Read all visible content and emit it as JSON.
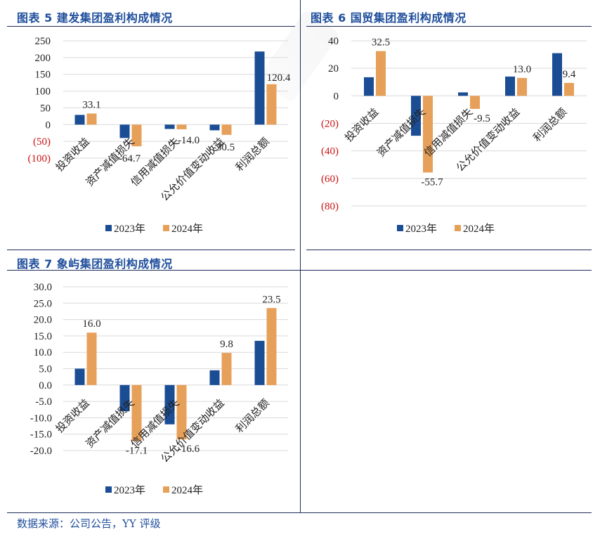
{
  "colors": {
    "y2023": "#1a4d94",
    "y2024": "#e6a05a",
    "negative_tick": "#cc1111",
    "axis_text": "#222222",
    "grid": "#d9d9d9",
    "title": "#1f4e9c"
  },
  "source_note": "数据来源：公司公告，YY 评级",
  "chart_data": [
    {
      "type": "bar",
      "title": "图表 5 建发集团盈利构成情况",
      "categories": [
        "投资收益",
        "资产减值损失",
        "信用减值损失",
        "公允价值变动收益",
        "利润总额"
      ],
      "series": [
        {
          "name": "2023年",
          "values": [
            29.0,
            -40.0,
            -13.0,
            -17.0,
            218.0
          ]
        },
        {
          "name": "2024年",
          "values": [
            33.1,
            -64.7,
            -14.0,
            -30.5,
            120.4
          ]
        }
      ],
      "data_labels": [
        "33.1",
        "-64.7",
        "-14.0",
        "-30.5",
        "120.4"
      ],
      "ylim": [
        -100,
        250
      ],
      "yticks": [
        "250",
        "200",
        "150",
        "100",
        "50",
        "0",
        "(50)",
        "(100)"
      ],
      "legend": "bottom",
      "grid": true
    },
    {
      "type": "bar",
      "title": "图表 6 国贸集团盈利构成情况",
      "categories": [
        "投资收益",
        "资产减值损失",
        "信用减值损失",
        "公允价值变动收益",
        "利润总额"
      ],
      "series": [
        {
          "name": "2023年",
          "values": [
            13.5,
            -29.0,
            2.5,
            14.0,
            31.0
          ]
        },
        {
          "name": "2024年",
          "values": [
            32.5,
            -55.7,
            -9.5,
            13.0,
            9.4
          ]
        }
      ],
      "data_labels": [
        "32.5",
        "-55.7",
        "-9.5",
        "13.0",
        "9.4"
      ],
      "ylim": [
        -80,
        40
      ],
      "yticks": [
        "40",
        "20",
        "0",
        "(20)",
        "(40)",
        "(60)",
        "(80)"
      ],
      "legend": "bottom",
      "grid": true
    },
    {
      "type": "bar",
      "title": "图表 7 象屿集团盈利构成情况",
      "categories": [
        "投资收益",
        "资产减值损失",
        "信用减值损失",
        "公允价值变动收益",
        "利润总额"
      ],
      "series": [
        {
          "name": "2023年",
          "values": [
            5.0,
            -8.0,
            -12.0,
            4.5,
            13.5
          ]
        },
        {
          "name": "2024年",
          "values": [
            16.0,
            -17.1,
            -16.6,
            9.8,
            23.5
          ]
        }
      ],
      "data_labels": [
        "16.0",
        "-17.1",
        "-16.6",
        "9.8",
        "23.5"
      ],
      "ylim": [
        -20,
        30
      ],
      "yticks": [
        "30.0",
        "25.0",
        "20.0",
        "15.0",
        "10.0",
        "5.0",
        "0.0",
        "-5.0",
        "-10.0",
        "-15.0",
        "-20.0"
      ],
      "legend": "bottom",
      "grid": true
    }
  ]
}
